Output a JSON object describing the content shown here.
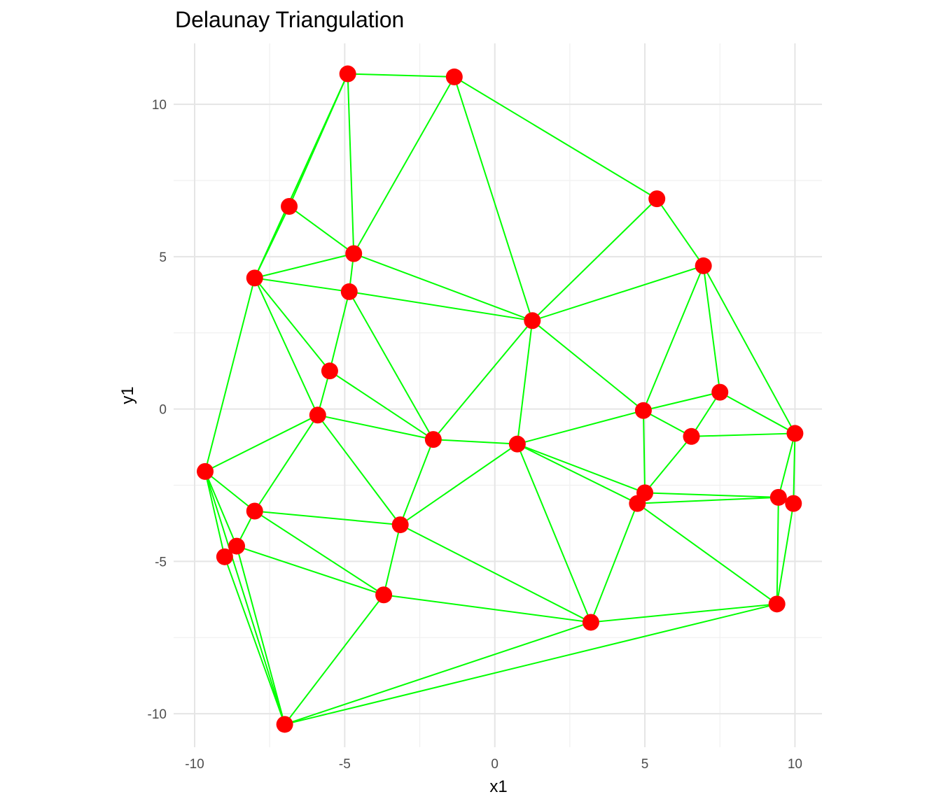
{
  "chart_data": {
    "type": "scatter",
    "title": "Delaunay Triangulation",
    "xlabel": "x1",
    "ylabel": "y1",
    "xlim": [
      -10.7,
      10.9
    ],
    "ylim": [
      -11.1,
      12.0
    ],
    "xticks": [
      -10,
      -5,
      0,
      5,
      10
    ],
    "yticks": [
      -10,
      -5,
      0,
      5,
      10
    ],
    "xtick_labels": [
      "-10",
      "-5",
      "0",
      "5",
      "10"
    ],
    "ytick_labels": [
      "-10",
      "-5",
      "0",
      "5",
      "10"
    ],
    "grid": true,
    "colors": {
      "points": "#ff0000",
      "edges": "#00ff00",
      "grid": "#e5e5e5"
    },
    "points": [
      {
        "x": -4.9,
        "y": 11.0
      },
      {
        "x": -1.35,
        "y": 10.9
      },
      {
        "x": -6.85,
        "y": 6.65
      },
      {
        "x": 5.4,
        "y": 6.9
      },
      {
        "x": -4.7,
        "y": 5.1
      },
      {
        "x": 6.95,
        "y": 4.7
      },
      {
        "x": -8.0,
        "y": 4.3
      },
      {
        "x": -4.85,
        "y": 3.85
      },
      {
        "x": 1.25,
        "y": 2.9
      },
      {
        "x": -5.5,
        "y": 1.25
      },
      {
        "x": 7.5,
        "y": 0.55
      },
      {
        "x": -5.9,
        "y": -0.2
      },
      {
        "x": 4.95,
        "y": -0.05
      },
      {
        "x": 10.0,
        "y": -0.8
      },
      {
        "x": 6.55,
        "y": -0.9
      },
      {
        "x": -2.05,
        "y": -1.0
      },
      {
        "x": 0.75,
        "y": -1.15
      },
      {
        "x": -9.65,
        "y": -2.05
      },
      {
        "x": 5.0,
        "y": -2.75
      },
      {
        "x": 4.75,
        "y": -3.1
      },
      {
        "x": 9.45,
        "y": -2.9
      },
      {
        "x": 9.95,
        "y": -3.1
      },
      {
        "x": -8.0,
        "y": -3.35
      },
      {
        "x": -3.15,
        "y": -3.8
      },
      {
        "x": -8.6,
        "y": -4.5
      },
      {
        "x": -9.0,
        "y": -4.85
      },
      {
        "x": -3.7,
        "y": -6.1
      },
      {
        "x": 3.2,
        "y": -7.0
      },
      {
        "x": 9.4,
        "y": -6.4
      },
      {
        "x": -7.0,
        "y": -10.35
      }
    ],
    "edges": [
      [
        0,
        1
      ],
      [
        0,
        2
      ],
      [
        0,
        6
      ],
      [
        0,
        4
      ],
      [
        1,
        4
      ],
      [
        1,
        8
      ],
      [
        1,
        3
      ],
      [
        2,
        6
      ],
      [
        2,
        4
      ],
      [
        6,
        4
      ],
      [
        4,
        7
      ],
      [
        4,
        8
      ],
      [
        6,
        7
      ],
      [
        6,
        9
      ],
      [
        6,
        11
      ],
      [
        6,
        17
      ],
      [
        7,
        9
      ],
      [
        7,
        8
      ],
      [
        7,
        15
      ],
      [
        9,
        11
      ],
      [
        9,
        15
      ],
      [
        8,
        3
      ],
      [
        8,
        5
      ],
      [
        8,
        12
      ],
      [
        8,
        15
      ],
      [
        8,
        16
      ],
      [
        3,
        5
      ],
      [
        5,
        12
      ],
      [
        5,
        10
      ],
      [
        5,
        13
      ],
      [
        10,
        12
      ],
      [
        10,
        14
      ],
      [
        10,
        13
      ],
      [
        12,
        14
      ],
      [
        12,
        16
      ],
      [
        12,
        18
      ],
      [
        14,
        13
      ],
      [
        14,
        18
      ],
      [
        13,
        20
      ],
      [
        13,
        21
      ],
      [
        20,
        21
      ],
      [
        18,
        20
      ],
      [
        18,
        19
      ],
      [
        18,
        16
      ],
      [
        19,
        20
      ],
      [
        19,
        16
      ],
      [
        19,
        28
      ],
      [
        19,
        27
      ],
      [
        20,
        28
      ],
      [
        21,
        28
      ],
      [
        16,
        15
      ],
      [
        16,
        23
      ],
      [
        16,
        27
      ],
      [
        15,
        11
      ],
      [
        15,
        23
      ],
      [
        11,
        23
      ],
      [
        11,
        17
      ],
      [
        11,
        22
      ],
      [
        17,
        22
      ],
      [
        17,
        24
      ],
      [
        17,
        25
      ],
      [
        17,
        29
      ],
      [
        22,
        24
      ],
      [
        22,
        23
      ],
      [
        22,
        26
      ],
      [
        24,
        25
      ],
      [
        24,
        26
      ],
      [
        24,
        29
      ],
      [
        25,
        29
      ],
      [
        23,
        26
      ],
      [
        23,
        27
      ],
      [
        26,
        27
      ],
      [
        26,
        29
      ],
      [
        27,
        28
      ],
      [
        27,
        29
      ],
      [
        28,
        29
      ]
    ]
  }
}
